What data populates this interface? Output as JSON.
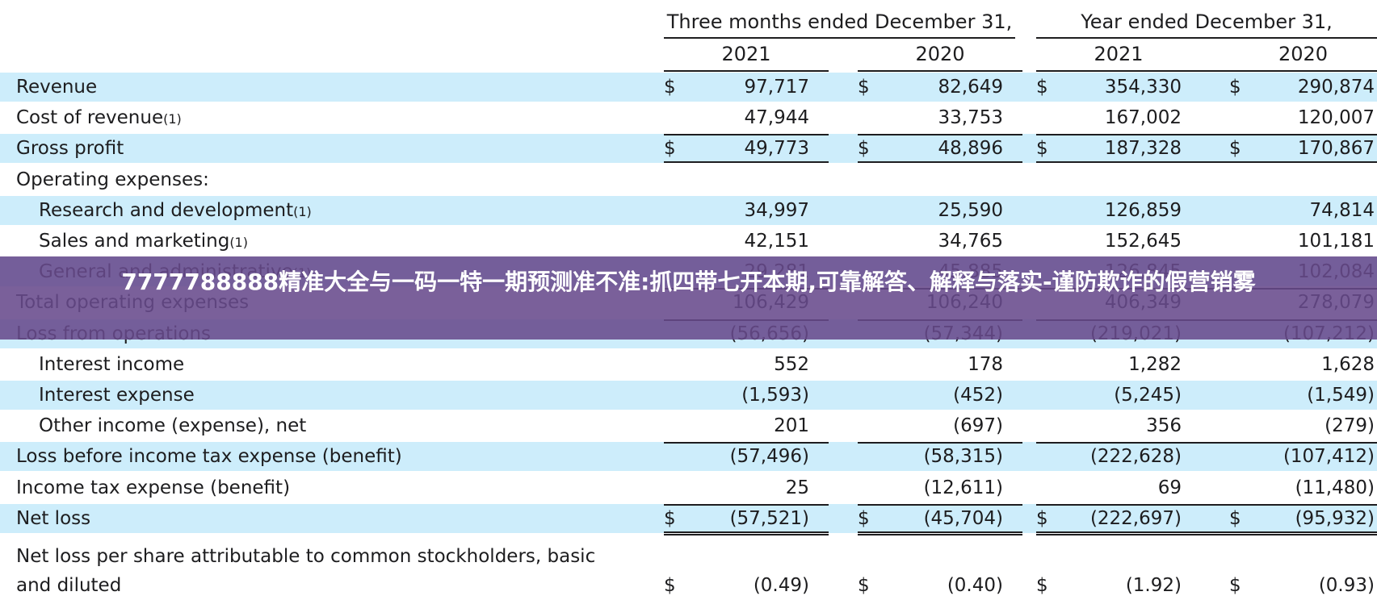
{
  "header": {
    "group1": "Three months ended December 31,",
    "group2": "Year ended December 31,",
    "years": [
      "2021",
      "2020",
      "2021",
      "2020"
    ]
  },
  "rows": [
    {
      "label": "Revenue",
      "sup": "",
      "indent": false,
      "shade": true,
      "cur": true,
      "vals": [
        "97,717",
        "82,649",
        "354,330",
        "290,874"
      ]
    },
    {
      "label": "Cost of revenue",
      "sup": "(1)",
      "indent": false,
      "shade": false,
      "cur": false,
      "vals": [
        "47,944",
        "33,753",
        "167,002",
        "120,007"
      ]
    },
    {
      "label": "Gross profit",
      "sup": "",
      "indent": false,
      "shade": true,
      "cur": true,
      "vals": [
        "49,773",
        "48,896",
        "187,328",
        "170,867"
      ]
    },
    {
      "label": "Operating expenses:",
      "sup": "",
      "indent": false,
      "shade": false,
      "cur": false,
      "vals": [
        "",
        "",
        "",
        ""
      ]
    },
    {
      "label": "Research and development",
      "sup": "(1)",
      "indent": true,
      "shade": true,
      "cur": false,
      "vals": [
        "34,997",
        "25,590",
        "126,859",
        "74,814"
      ]
    },
    {
      "label": "Sales and marketing",
      "sup": "(1)",
      "indent": true,
      "shade": false,
      "cur": false,
      "vals": [
        "42,151",
        "34,765",
        "152,645",
        "101,181"
      ]
    },
    {
      "label": "General and administrative",
      "sup": "(1)",
      "indent": true,
      "shade": true,
      "cur": false,
      "vals": [
        "29,281",
        "45,885",
        "126,845",
        "102,084"
      ]
    },
    {
      "label": "Total operating expenses",
      "sup": "",
      "indent": false,
      "shade": false,
      "cur": false,
      "vals": [
        "106,429",
        "106,240",
        "406,349",
        "278,079"
      ]
    },
    {
      "label": "Loss from operations",
      "sup": "",
      "indent": false,
      "shade": true,
      "cur": false,
      "vals": [
        "(56,656)",
        "(57,344)",
        "(219,021)",
        "(107,212)"
      ]
    },
    {
      "label": "Interest income",
      "sup": "",
      "indent": true,
      "shade": false,
      "cur": false,
      "vals": [
        "552",
        "178",
        "1,282",
        "1,628"
      ]
    },
    {
      "label": "Interest expense",
      "sup": "",
      "indent": true,
      "shade": true,
      "cur": false,
      "vals": [
        "(1,593)",
        "(452)",
        "(5,245)",
        "(1,549)"
      ]
    },
    {
      "label": "Other income (expense), net",
      "sup": "",
      "indent": true,
      "shade": false,
      "cur": false,
      "vals": [
        "201",
        "(697)",
        "356",
        "(279)"
      ]
    },
    {
      "label": "Loss before income tax expense (benefit)",
      "sup": "",
      "indent": false,
      "shade": true,
      "cur": false,
      "vals": [
        "(57,496)",
        "(58,315)",
        "(222,628)",
        "(107,412)"
      ]
    },
    {
      "label": "Income tax expense (benefit)",
      "sup": "",
      "indent": false,
      "shade": false,
      "cur": false,
      "vals": [
        "25",
        "(12,611)",
        "69",
        "(11,480)"
      ]
    },
    {
      "label": "Net loss",
      "sup": "",
      "indent": false,
      "shade": true,
      "cur": true,
      "vals": [
        "(57,521)",
        "(45,704)",
        "(222,697)",
        "(95,932)"
      ]
    }
  ],
  "eps": {
    "line1": "Net loss per share attributable to common stockholders, basic",
    "line2": "and diluted",
    "vals": [
      "(0.49)",
      "(0.40)",
      "(1.92)",
      "(0.93)"
    ]
  },
  "currency_symbol": "$",
  "banner": {
    "text": "7777788888精准大全与一码一特一期预测准不准:抓四带七开本期,可靠解答、解释与落实-谨防欺诈的假营销雾"
  }
}
